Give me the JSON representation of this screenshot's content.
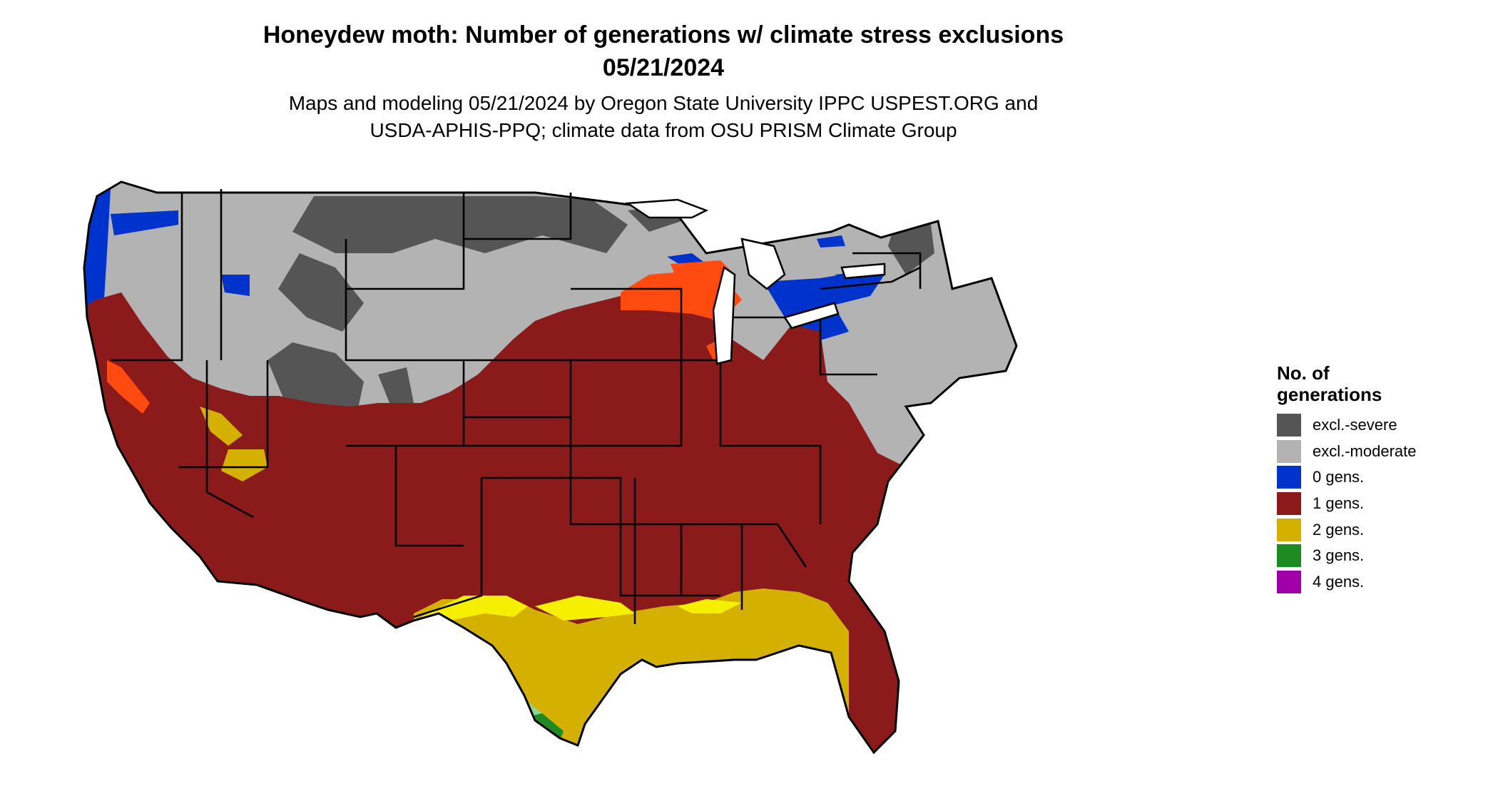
{
  "title": "Honeydew moth: Number of generations w/ climate stress exclusions",
  "date": "05/21/2024",
  "subtitle_line1": "Maps and modeling 05/21/2024 by Oregon State University IPPC USPEST.ORG and",
  "subtitle_line2": "USDA-APHIS-PPQ; climate data from OSU PRISM Climate Group",
  "legend": {
    "title_line1": "No. of",
    "title_line2": "generations",
    "items": [
      {
        "label": "excl.-severe",
        "color": "#555555"
      },
      {
        "label": "excl.-moderate",
        "color": "#b3b3b3"
      },
      {
        "label": "0 gens.",
        "color": "#0033cc"
      },
      {
        "label": "1 gens.",
        "color": "#8b1a1a"
      },
      {
        "label": "2 gens.",
        "color": "#d4b000"
      },
      {
        "label": "3 gens.",
        "color": "#1e8a22"
      },
      {
        "label": "4 gens.",
        "color": "#a000a8"
      }
    ]
  }
}
